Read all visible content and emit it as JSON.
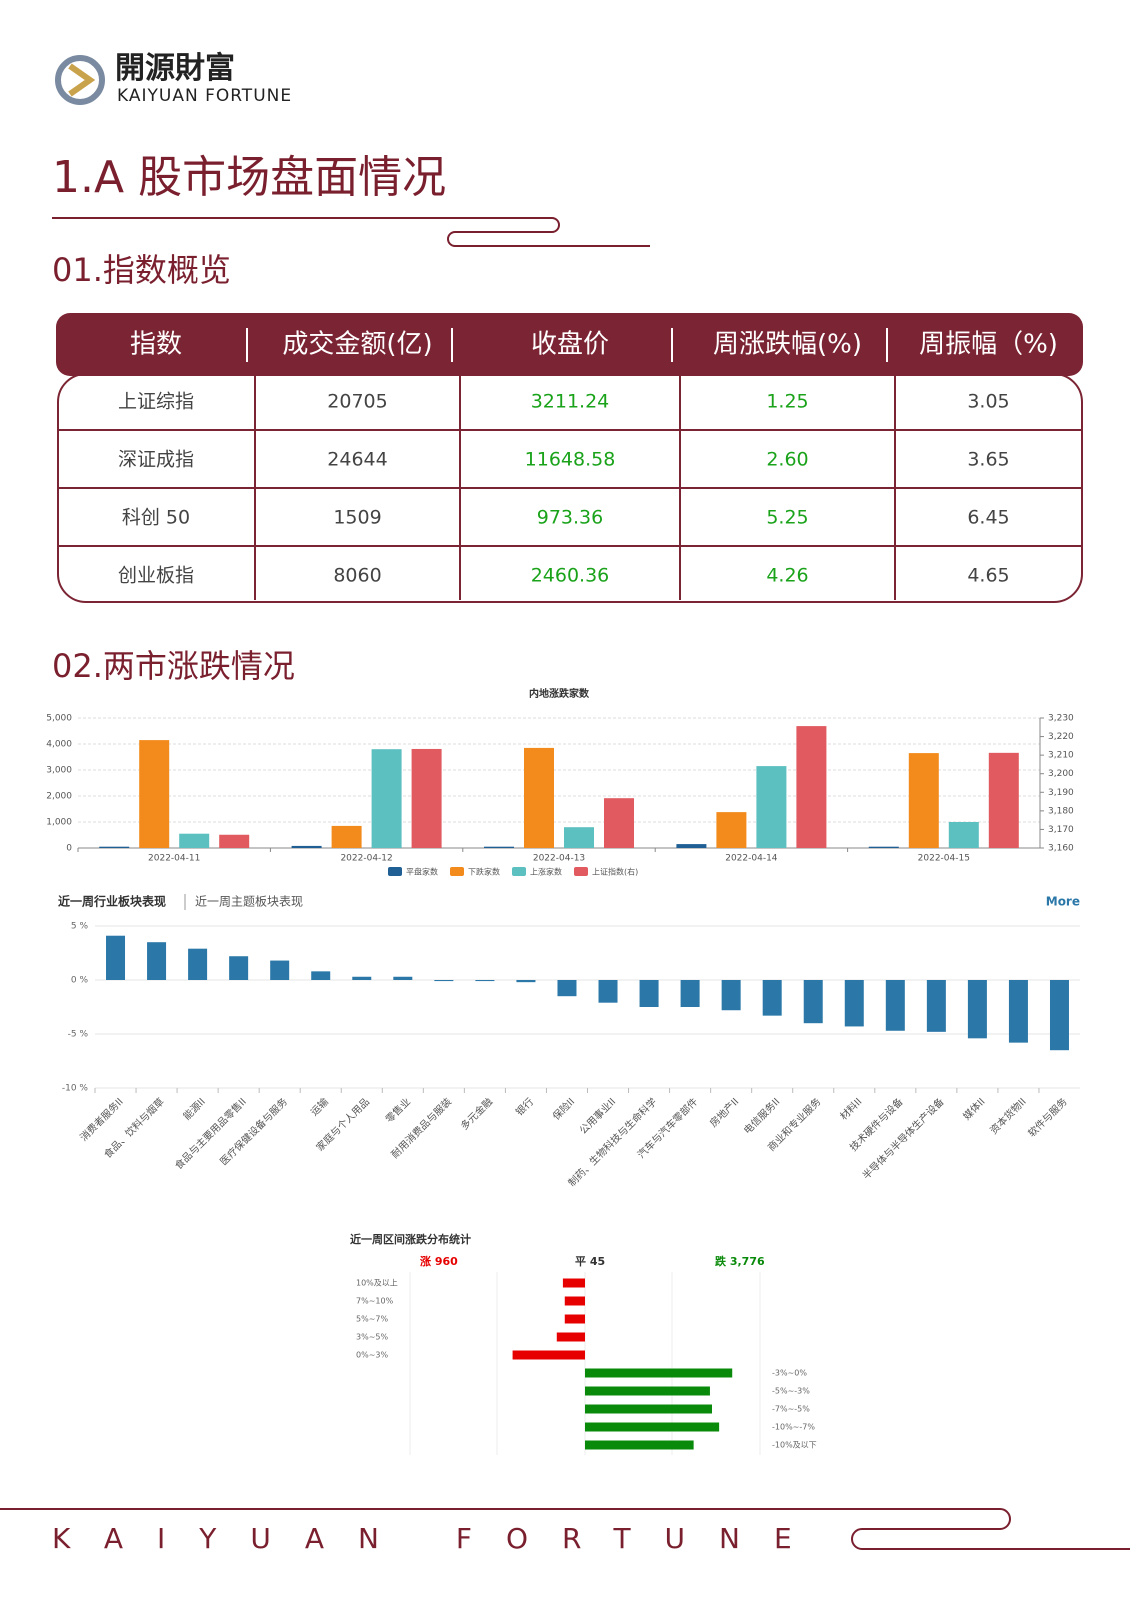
{
  "header": {
    "logo_cn": "開源財富",
    "logo_en": "KAIYUAN FORTUNE"
  },
  "title": "1.A 股市场盘面情况",
  "sections": [
    "01.指数概览",
    "02.两市涨跌情况"
  ],
  "table": {
    "header": [
      "指数",
      "成交金额(亿)",
      "收盘价",
      "周涨跌幅(%)",
      "周振幅（%)"
    ],
    "rows": [
      [
        "上证综指",
        "20705",
        "3211.24",
        "1.25",
        "3.05"
      ],
      [
        "深证成指",
        "24644",
        "11648.58",
        "2.60",
        "3.65"
      ],
      [
        "科创 50",
        "1509",
        "973.36",
        "5.25",
        "6.45"
      ],
      [
        "创业板指",
        "8060",
        "2460.36",
        "4.26",
        "4.65"
      ]
    ],
    "highlight_columns": [
      2,
      3
    ],
    "highlight_color": "#1aa31a"
  },
  "chart_data": [
    {
      "type": "bar",
      "title": "内地涨跌家数",
      "categories": [
        "2022-04-11",
        "2022-04-12",
        "2022-04-13",
        "2022-04-14",
        "2022-04-15"
      ],
      "series": [
        {
          "name": "平盘家数",
          "color": "#1f5f93",
          "values": [
            50,
            80,
            50,
            150,
            50
          ]
        },
        {
          "name": "下跌家数",
          "color": "#f28a1c",
          "values": [
            4150,
            850,
            3850,
            1380,
            3650
          ]
        },
        {
          "name": "上涨家数",
          "color": "#5cbfc0",
          "values": [
            550,
            3800,
            800,
            3150,
            1000
          ]
        },
        {
          "name": "上证指数(右)",
          "color": "#e05a5f",
          "axis": "y2",
          "values": [
            3167.13,
            3213.33,
            3186.82,
            3225.64,
            3211.24
          ]
        }
      ],
      "ylim": [
        0,
        5000
      ],
      "yticks": [
        0,
        {
          "value": 1000,
          "label": "1,000"
        },
        {
          "value": 2000,
          "label": "2,000"
        },
        {
          "value": 3000,
          "label": "3,000"
        },
        {
          "value": 4000,
          "label": "4,000"
        },
        {
          "value": 5000,
          "label": "5,000"
        }
      ],
      "y2lim": [
        3160,
        3230
      ],
      "y2ticks": [
        {
          "value": 3160,
          "label": "3,160"
        },
        {
          "value": 3170,
          "label": "3,170"
        },
        {
          "value": 3180,
          "label": "3,180"
        },
        {
          "value": 3190,
          "label": "3,190"
        },
        {
          "value": 3200,
          "label": "3,200"
        },
        {
          "value": 3210,
          "label": "3,210"
        },
        {
          "value": 3220,
          "label": "3,220"
        },
        {
          "value": 3230,
          "label": "3,230"
        }
      ],
      "grid": true,
      "legend": "bottom"
    },
    {
      "type": "bar",
      "tabs": [
        "近一周行业板块表现",
        "近一周主题板块表现"
      ],
      "link": "More",
      "color": "#2a77a8",
      "categories": [
        "消费者服务II",
        "食品、饮料与烟草",
        "能源II",
        "食品与主要用品零售II",
        "医疗保健设备与服务",
        "运输",
        "家庭与个人用品",
        "零售业",
        "耐用消费品与服装",
        "多元金融",
        "银行",
        "保险II",
        "公用事业II",
        "制药、生物科技与生命科学",
        "汽车与汽车零部件",
        "房地产II",
        "电信服务II",
        "商业和专业服务",
        "材料II",
        "技术硬件与设备",
        "半导体与半导体生产设备",
        "媒体II",
        "资本货物II",
        "软件与服务"
      ],
      "values": [
        4.1,
        3.5,
        2.9,
        2.2,
        1.8,
        0.8,
        0.3,
        0.3,
        -0.1,
        -0.1,
        -0.2,
        -1.5,
        -2.1,
        -2.5,
        -2.5,
        -2.8,
        -3.3,
        -4.0,
        -4.3,
        -4.7,
        -4.8,
        -5.4,
        -5.8,
        -6.5
      ],
      "ylim": [
        -10,
        5
      ],
      "yticks": [
        {
          "value": -10,
          "label": "-10 %"
        },
        {
          "value": -5,
          "label": "-5 %"
        },
        {
          "value": 0,
          "label": "0 %"
        },
        {
          "value": 5,
          "label": "5 %"
        }
      ],
      "grid": true
    },
    {
      "type": "hbar",
      "title": "近一周区间涨跌分布统计",
      "series": [
        {
          "name": "涨 960",
          "color": "#e60000",
          "categories": [
            "10%及以上",
            "7%~10%",
            "5%~7%",
            "3%~5%",
            "0%~3%"
          ],
          "values": [
            130,
            119,
            119,
            166,
            426
          ]
        },
        {
          "name": "平 45",
          "color": "#333333",
          "categories": [],
          "values": []
        },
        {
          "name": "跌 3,776",
          "color": "#0a8a0a",
          "categories": [
            "-3%~0%",
            "-5%~-3%",
            "-7%~-5%",
            "-10%~-7%",
            "-10%及以下"
          ],
          "values": [
            866,
            735,
            747,
            789,
            639
          ]
        }
      ]
    }
  ],
  "footer": "KAIYUAN FORTUNE"
}
